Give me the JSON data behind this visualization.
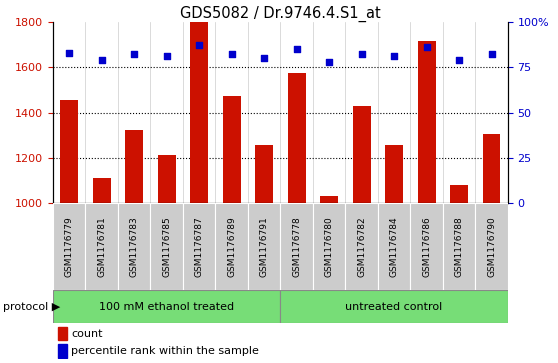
{
  "title": "GDS5082 / Dr.9746.4.S1_at",
  "samples": [
    "GSM1176779",
    "GSM1176781",
    "GSM1176783",
    "GSM1176785",
    "GSM1176787",
    "GSM1176789",
    "GSM1176791",
    "GSM1176778",
    "GSM1176780",
    "GSM1176782",
    "GSM1176784",
    "GSM1176786",
    "GSM1176788",
    "GSM1176790"
  ],
  "counts": [
    1455,
    1110,
    1325,
    1215,
    1800,
    1475,
    1255,
    1575,
    1030,
    1430,
    1255,
    1715,
    1080,
    1305
  ],
  "percentiles": [
    83,
    79,
    82,
    81,
    87,
    82,
    80,
    85,
    78,
    82,
    81,
    86,
    79,
    82
  ],
  "group1_label": "100 mM ethanol treated",
  "group2_label": "untreated control",
  "group1_count": 7,
  "group2_count": 7,
  "ylim_left": [
    1000,
    1800
  ],
  "ylim_right": [
    0,
    100
  ],
  "yticks_left": [
    1000,
    1200,
    1400,
    1600,
    1800
  ],
  "yticks_right": [
    0,
    25,
    50,
    75,
    100
  ],
  "bar_color": "#cc1100",
  "dot_color": "#0000cc",
  "group_color": "#77dd77",
  "sample_bg_color": "#cccccc",
  "grid_color": "#000000",
  "legend_count_color": "#cc1100",
  "legend_pct_color": "#0000cc",
  "protocol_arrow": "protocol ▶"
}
